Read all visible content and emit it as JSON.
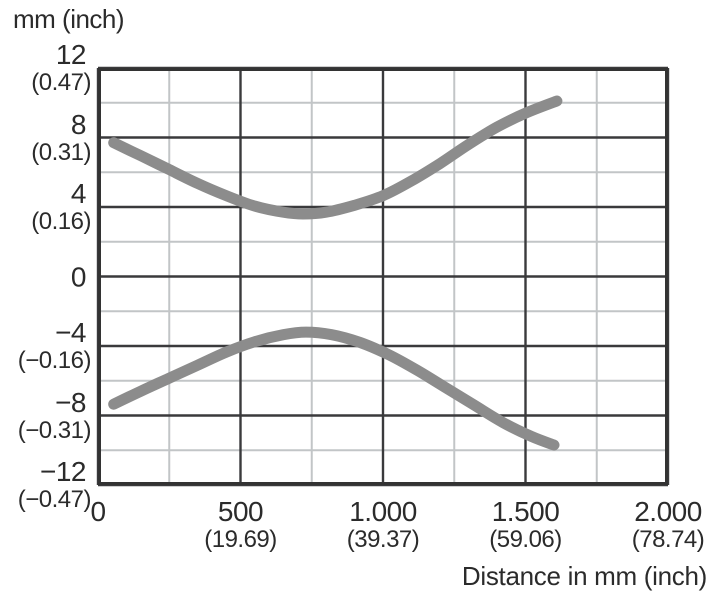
{
  "chart": {
    "corner_label": "mm (inch)",
    "x_axis_title": "Distance in mm (inch)",
    "colors": {
      "background": "#ffffff",
      "text": "#2b2b2b",
      "curve": "#8c8c8c",
      "major_grid": "#3a3a3c",
      "minor_grid": "#c2c5c7",
      "border": "#333333"
    }
  },
  "chart_data": {
    "type": "line",
    "title": "mm (inch)",
    "xlabel": "Distance in mm (inch)",
    "ylabel": "mm (inch)",
    "xlim": [
      0,
      2000
    ],
    "ylim": [
      -12,
      12
    ],
    "grid": "on",
    "legend": "none",
    "x_major_gridlines": [
      0,
      500,
      1000,
      1500,
      2000
    ],
    "x_minor_gridlines": [
      250,
      750,
      1250,
      1750
    ],
    "y_major_gridlines": [
      12,
      8,
      4,
      0,
      -4,
      -8,
      -12
    ],
    "y_minor_gridlines": [
      10,
      6,
      2,
      -2,
      -6,
      -10
    ],
    "x_ticks": [
      {
        "value": 0,
        "mm": "0",
        "inch": ""
      },
      {
        "value": 500,
        "mm": "500",
        "inch": "(19.69)"
      },
      {
        "value": 1000,
        "mm": "1.000",
        "inch": "(39.37)"
      },
      {
        "value": 1500,
        "mm": "1.500",
        "inch": "(59.06)"
      },
      {
        "value": 2000,
        "mm": "2.000",
        "inch": "(78.74)"
      }
    ],
    "y_ticks": [
      {
        "value": 12,
        "mm": "12",
        "inch": "(0.47)"
      },
      {
        "value": 8,
        "mm": "8",
        "inch": "(0.31)"
      },
      {
        "value": 4,
        "mm": "4",
        "inch": "(0.16)"
      },
      {
        "value": 0,
        "mm": "0",
        "inch": ""
      },
      {
        "value": -4,
        "mm": "−4",
        "inch": "(−0.16)"
      },
      {
        "value": -8,
        "mm": "−8",
        "inch": "(−0.31)"
      },
      {
        "value": -12,
        "mm": "−12",
        "inch": "(−0.47)"
      }
    ],
    "series": [
      {
        "name": "upper boundary",
        "points": [
          [
            55,
            7.7
          ],
          [
            150,
            6.95
          ],
          [
            250,
            6.15
          ],
          [
            350,
            5.35
          ],
          [
            450,
            4.65
          ],
          [
            550,
            4.05
          ],
          [
            650,
            3.7
          ],
          [
            720,
            3.6
          ],
          [
            800,
            3.7
          ],
          [
            900,
            4.1
          ],
          [
            1000,
            4.65
          ],
          [
            1100,
            5.5
          ],
          [
            1200,
            6.5
          ],
          [
            1300,
            7.6
          ],
          [
            1400,
            8.6
          ],
          [
            1500,
            9.4
          ],
          [
            1610,
            10.1
          ]
        ]
      },
      {
        "name": "lower boundary",
        "points": [
          [
            55,
            -7.35
          ],
          [
            150,
            -6.6
          ],
          [
            250,
            -5.85
          ],
          [
            350,
            -5.1
          ],
          [
            450,
            -4.35
          ],
          [
            550,
            -3.75
          ],
          [
            650,
            -3.35
          ],
          [
            730,
            -3.2
          ],
          [
            820,
            -3.35
          ],
          [
            920,
            -3.8
          ],
          [
            1020,
            -4.5
          ],
          [
            1120,
            -5.4
          ],
          [
            1220,
            -6.4
          ],
          [
            1320,
            -7.4
          ],
          [
            1420,
            -8.4
          ],
          [
            1520,
            -9.2
          ],
          [
            1600,
            -9.7
          ]
        ]
      }
    ]
  }
}
